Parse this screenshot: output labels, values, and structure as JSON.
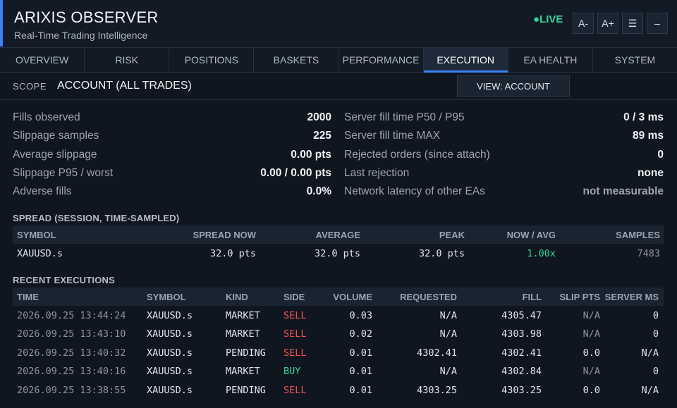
{
  "header": {
    "title": "ARIXIS OBSERVER",
    "subtitle": "Real-Time Trading Intelligence",
    "live": "●LIVE",
    "buttons": [
      "A-",
      "A+",
      "☰",
      "–"
    ]
  },
  "tabs": [
    "OVERVIEW",
    "RISK",
    "POSITIONS",
    "BASKETS",
    "PERFORMANCE",
    "EXECUTION",
    "EA HEALTH",
    "SYSTEM"
  ],
  "active_tab": "EXECUTION",
  "scope": {
    "label": "SCOPE",
    "value": "ACCOUNT (ALL TRADES)",
    "view_button": "VIEW: ACCOUNT"
  },
  "stats_left": [
    {
      "label": "Fills observed",
      "value": "2000"
    },
    {
      "label": "Slippage samples",
      "value": "225"
    },
    {
      "label": "Average slippage",
      "value": "0.00 pts"
    },
    {
      "label": "Slippage P95 / worst",
      "value": "0.00 / 0.00 pts"
    },
    {
      "label": "Adverse fills",
      "value": "0.0%"
    }
  ],
  "stats_right": [
    {
      "label": "Server fill time P50 / P95",
      "value": "0 / 3 ms"
    },
    {
      "label": "Server fill time MAX",
      "value": "89 ms"
    },
    {
      "label": "Rejected orders (since attach)",
      "value": "0"
    },
    {
      "label": "Last rejection",
      "value": "none"
    },
    {
      "label": "Network latency of other EAs",
      "value": "not measurable"
    }
  ],
  "spread": {
    "title": "SPREAD (SESSION, TIME-SAMPLED)",
    "headers": {
      "symbol": "SYMBOL",
      "now": "SPREAD NOW",
      "avg": "AVERAGE",
      "peak": "PEAK",
      "ratio": "NOW / AVG",
      "samples": "SAMPLES"
    },
    "rows": [
      {
        "symbol": "XAUUSD.s",
        "now": "32.0 pts",
        "avg": "32.0 pts",
        "peak": "32.0 pts",
        "ratio": "1.00x",
        "samples": "7483"
      }
    ]
  },
  "executions": {
    "title": "RECENT EXECUTIONS",
    "headers": {
      "time": "TIME",
      "symbol": "SYMBOL",
      "kind": "KIND",
      "side": "SIDE",
      "volume": "VOLUME",
      "requested": "REQUESTED",
      "fill": "FILL",
      "slip": "SLIP PTS",
      "server": "SERVER MS"
    },
    "rows": [
      {
        "time": "2026.09.25 13:44:24",
        "symbol": "XAUUSD.s",
        "kind": "MARKET",
        "side": "SELL",
        "volume": "0.03",
        "requested": "N/A",
        "fill": "4305.47",
        "slip": "N/A",
        "server": "0"
      },
      {
        "time": "2026.09.25 13:43:10",
        "symbol": "XAUUSD.s",
        "kind": "MARKET",
        "side": "SELL",
        "volume": "0.02",
        "requested": "N/A",
        "fill": "4303.98",
        "slip": "N/A",
        "server": "0"
      },
      {
        "time": "2026.09.25 13:40:32",
        "symbol": "XAUUSD.s",
        "kind": "PENDING",
        "side": "SELL",
        "volume": "0.01",
        "requested": "4302.41",
        "fill": "4302.41",
        "slip": "0.0",
        "server": "N/A"
      },
      {
        "time": "2026.09.25 13:40:16",
        "symbol": "XAUUSD.s",
        "kind": "MARKET",
        "side": "BUY",
        "volume": "0.01",
        "requested": "N/A",
        "fill": "4302.84",
        "slip": "N/A",
        "server": "0"
      },
      {
        "time": "2026.09.25 13:38:55",
        "symbol": "XAUUSD.s",
        "kind": "PENDING",
        "side": "SELL",
        "volume": "0.01",
        "requested": "4303.25",
        "fill": "4303.25",
        "slip": "0.0",
        "server": "N/A"
      }
    ]
  },
  "colors": {
    "accent": "#3b82f6",
    "live": "#34d399",
    "sell": "#f05252",
    "buy": "#34d399",
    "background": "#0f1620"
  }
}
